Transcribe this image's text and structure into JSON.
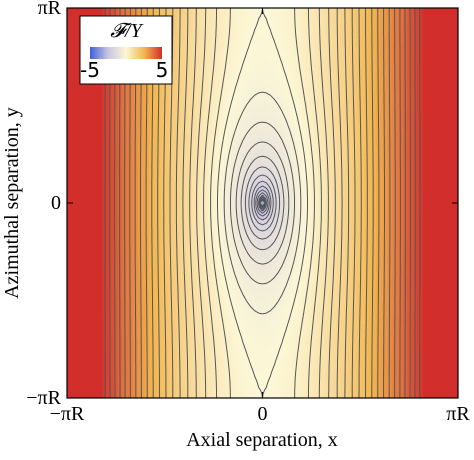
{
  "chart_data": {
    "type": "contour",
    "x_label": "Axial separation, x",
    "y_label": "Azimuthal separation, y",
    "xlim": [
      -3.1416,
      3.1416
    ],
    "ylim": [
      -3.1416,
      3.1416
    ],
    "xticks": [
      {
        "value": -3.1416,
        "label": "−πR"
      },
      0,
      {
        "value": 3.1416,
        "label": "πR"
      }
    ],
    "yticks": [
      {
        "value": -3.1416,
        "label": "−πR"
      },
      0,
      {
        "value": 3.1416,
        "label": "πR"
      }
    ],
    "levels": [
      -4.75,
      -4.5,
      -4.25,
      -4,
      -3.75,
      -3.5,
      -3.25,
      -3,
      -2.75,
      -2.5,
      -2.25,
      -2,
      -1.75,
      -1.5,
      -1.25,
      -1,
      -0.75,
      -0.5,
      -0.25,
      0,
      0.25,
      0.5,
      0.75,
      1,
      1.25,
      1.5,
      1.75,
      2,
      2.25,
      2.5,
      2.75,
      3,
      3.25,
      3.5,
      3.75,
      4,
      4.25,
      4.5,
      4.75
    ],
    "line_color": "#555555",
    "colorbar": {
      "label": "𝓕/Y",
      "lim": [
        -5,
        5
      ],
      "ticks": [
        -5,
        5
      ],
      "colors": [
        "#4062d6",
        "#c8c4e4",
        "#fcf7d6",
        "#f3b64f",
        "#d22f2c"
      ]
    }
  }
}
